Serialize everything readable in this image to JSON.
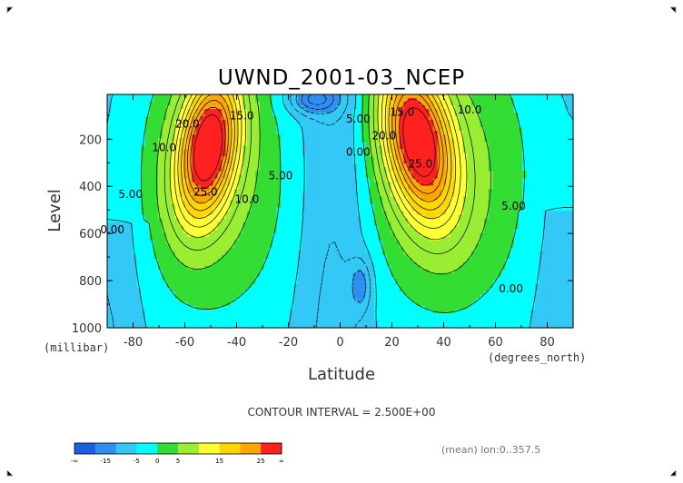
{
  "chart_data": {
    "type": "heatmap",
    "title": "UWND_2001-03_NCEP",
    "xlabel": "Latitude",
    "xunits": "(degrees_north)",
    "ylabel": "Level",
    "yunits": "(millibar)",
    "x_ticks": [
      -80,
      -60,
      -40,
      -20,
      0,
      20,
      40,
      60,
      80
    ],
    "x_tick_labels": [
      "-80",
      "-60",
      "-40",
      "-20",
      "0",
      "20",
      "40",
      "60",
      "80"
    ],
    "y_ticks": [
      200,
      400,
      600,
      800,
      1000
    ],
    "y_tick_labels": [
      "200",
      "400",
      "600",
      "800",
      "1000"
    ],
    "xlim": [
      -90,
      90
    ],
    "ylim": [
      1000,
      10
    ],
    "y_inverted": true,
    "contour_interval_text": "CONTOUR INTERVAL = 2.500E+00",
    "footer_note": "(mean) lon:0..357.5",
    "colorbar": {
      "labels": [
        "-∞",
        "-15",
        "-5",
        "0",
        "5",
        "15",
        "25",
        "∞"
      ],
      "colors": [
        "#1a5fe0",
        "#2f8ff0",
        "#33c8f5",
        "#00ffff",
        "#33dd33",
        "#99ee33",
        "#ffff33",
        "#ffd700",
        "#ffa500",
        "#ff2020"
      ]
    },
    "colorbar_colors_order": "low to high",
    "contour_labels": [
      {
        "text": "20.0",
        "lat": -59,
        "lev": 150
      },
      {
        "text": "15.0",
        "lat": -38,
        "lev": 115
      },
      {
        "text": "10.0",
        "lat": -68,
        "lev": 250
      },
      {
        "text": "5.00",
        "lat": -81,
        "lev": 450
      },
      {
        "text": "0.00",
        "lat": -88,
        "lev": 600
      },
      {
        "text": "25.0",
        "lat": -52,
        "lev": 440
      },
      {
        "text": "10.0",
        "lat": -36,
        "lev": 470
      },
      {
        "text": "5.00",
        "lat": -23,
        "lev": 370
      },
      {
        "text": "5.00",
        "lat": 7,
        "lev": 130
      },
      {
        "text": "0.00",
        "lat": 7,
        "lev": 270
      },
      {
        "text": "20.0",
        "lat": 17,
        "lev": 200
      },
      {
        "text": "15.0",
        "lat": 24,
        "lev": 100
      },
      {
        "text": "10.0",
        "lat": 50,
        "lev": 90
      },
      {
        "text": "25.0",
        "lat": 31,
        "lev": 320
      },
      {
        "text": "5.00",
        "lat": 67,
        "lev": 500
      },
      {
        "text": "0.00",
        "lat": 66,
        "lev": 850
      }
    ],
    "jets": [
      {
        "lat": -51,
        "lev": 230,
        "peak": 27.5
      },
      {
        "lat": 30,
        "lev": 200,
        "peak": 27.5
      }
    ],
    "grid": false,
    "legend": "colorbar bottom-left"
  }
}
